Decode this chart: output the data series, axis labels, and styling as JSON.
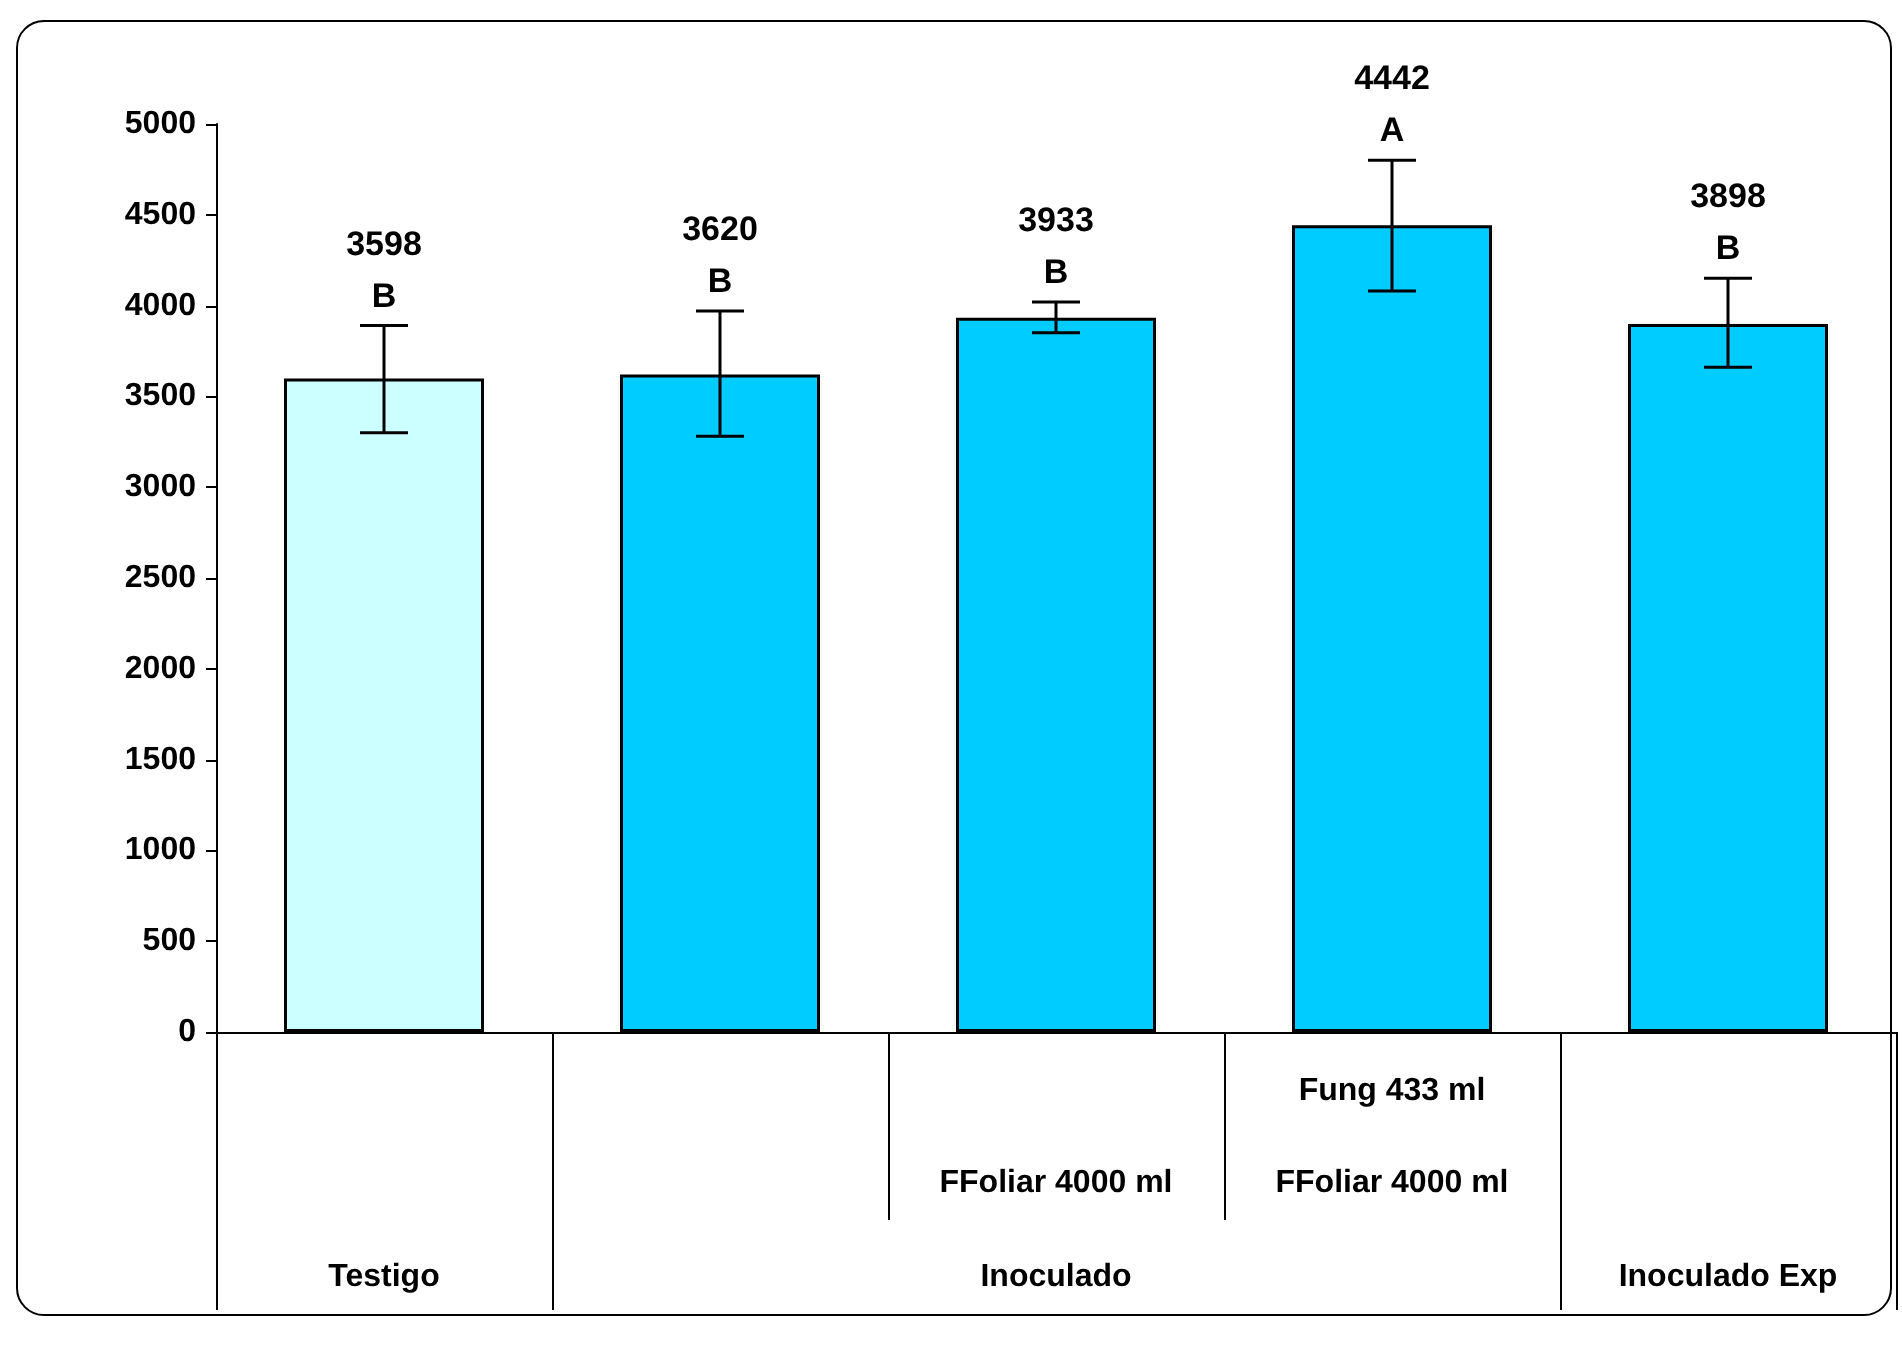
{
  "chart_data": {
    "type": "bar",
    "categories": [
      null,
      null,
      "FFoliar 4000 ml",
      "FFoliar 4000 ml",
      null
    ],
    "values": [
      3598,
      3620,
      3933,
      4442,
      3898
    ],
    "colors": [
      "#ccffff",
      "#00ccff",
      "#00ccff",
      "#00ccff",
      "#00ccff"
    ],
    "errors": [
      [
        3300,
        3890
      ],
      [
        3280,
        3970
      ],
      [
        3850,
        4020
      ],
      [
        4080,
        4800
      ],
      [
        3660,
        4150
      ]
    ],
    "value_labels": [
      "3598\nB",
      "3620\nB",
      "3933\nB",
      "4442\nA",
      "3898\nB"
    ],
    "annotations": [
      "Fung 433 ml",
      "Testigo",
      "Inoculado",
      "Inoculado Exp"
    ],
    "ylim": [
      0,
      5000
    ],
    "yticks": [
      0,
      500,
      1000,
      1500,
      2000,
      2500,
      3000,
      3500,
      4000,
      4500,
      5000
    ],
    "grid": false
  }
}
